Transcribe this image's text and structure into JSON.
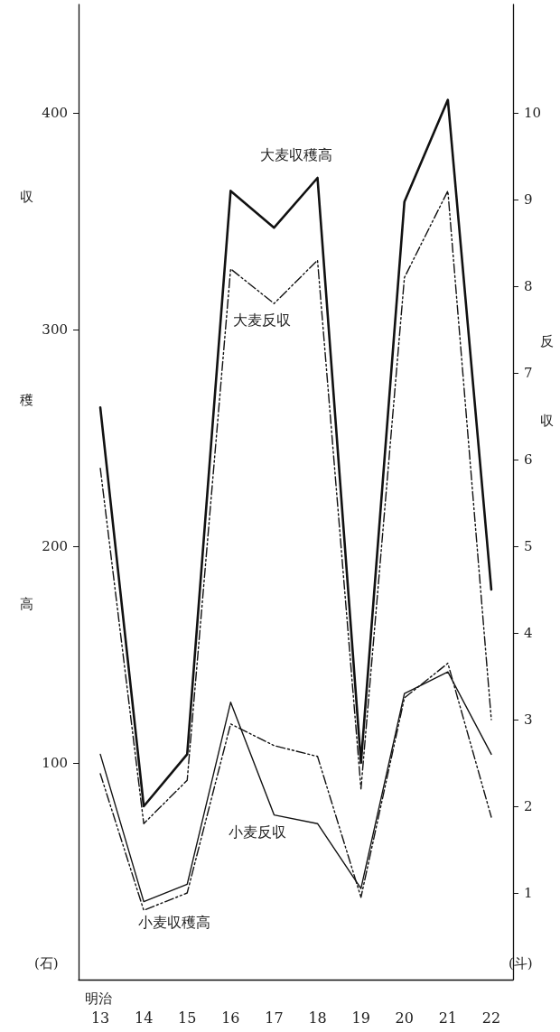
{
  "chart_data": {
    "type": "line",
    "xlabel": "明治",
    "ylabel": "収穫高",
    "y2label": "反収",
    "categories": [
      "13",
      "14",
      "15",
      "16",
      "17",
      "18",
      "19",
      "20",
      "21",
      "22"
    ],
    "series": [
      {
        "name": "大麦収穫高",
        "color": "#111111",
        "line_style": "solid",
        "values": [
          264,
          80,
          104,
          364,
          347,
          370,
          100,
          359,
          406,
          180
        ]
      },
      {
        "name": "大麦反収",
        "color": "#111111",
        "line_style": "dashed",
        "axis": "y2",
        "values": [
          5.9,
          1.8,
          2.3,
          8.2,
          7.8,
          8.3,
          2.2,
          8.1,
          9.1,
          3.0
        ]
      },
      {
        "name": "小麦反収",
        "color": "#111111",
        "line_style": "solid",
        "axis": "y2",
        "values": [
          2.6,
          0.9,
          1.1,
          3.2,
          1.9,
          1.8,
          1.05,
          3.3,
          3.55,
          2.6
        ]
      },
      {
        "name": "小麦収穫高",
        "color": "#111111",
        "line_style": "dashed",
        "values": [
          95,
          32,
          40,
          118,
          108,
          103,
          38,
          130,
          146,
          75
        ]
      }
    ],
    "ylim": [
      0,
      450
    ],
    "yticks": [
      100,
      200,
      300,
      400
    ],
    "y2lim": [
      0,
      11.25
    ],
    "y2ticks": [
      1,
      2,
      3,
      4,
      5,
      6,
      7,
      8,
      9,
      10
    ],
    "annotations": [
      "(石)",
      "(斗)"
    ],
    "marker": "none",
    "grid": false,
    "legend": false
  }
}
